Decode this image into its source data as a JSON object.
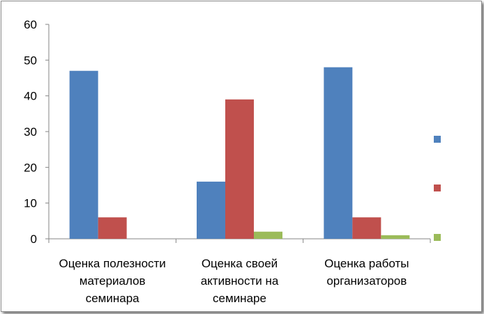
{
  "chart_data": {
    "type": "bar",
    "categories": [
      [
        "Оценка полезности",
        "материалов",
        "семинара"
      ],
      [
        "Оценка своей",
        "активности на",
        "семинаре"
      ],
      [
        "Оценка работы",
        "организаторов"
      ]
    ],
    "series": [
      {
        "color": "#4f81bd",
        "values": [
          47,
          16,
          48
        ]
      },
      {
        "color": "#c0504d",
        "values": [
          6,
          39,
          6
        ]
      },
      {
        "color": "#9bbb59",
        "values": [
          0,
          2,
          1
        ]
      }
    ],
    "ylim": [
      0,
      60
    ],
    "yticks": [
      "0",
      "10",
      "20",
      "30",
      "40",
      "50",
      "60"
    ],
    "grid": false,
    "legend_position": "right"
  }
}
